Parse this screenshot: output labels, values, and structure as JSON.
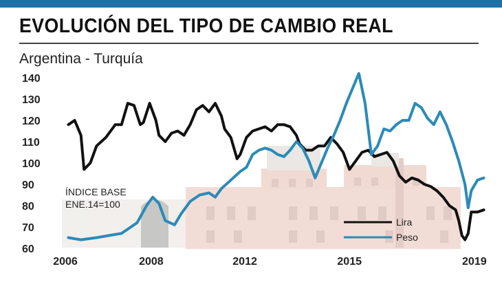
{
  "header": {
    "title": "EVOLUCIÓN DEL TIPO DE CAMBIO REAL",
    "subtitle": "Argentina - Turquía"
  },
  "colors": {
    "lira": "#111111",
    "peso": "#2b8ab8",
    "accent": "#1f6fa8"
  },
  "chart_data": {
    "type": "line",
    "title": "EVOLUCIÓN DEL TIPO DE CAMBIO REAL",
    "subtitle": "Argentina - Turquía",
    "xlabel": "",
    "ylabel": "",
    "ylim": [
      60,
      140
    ],
    "xlim": [
      2006,
      2019.5
    ],
    "y_ticks": [
      140,
      130,
      120,
      110,
      100,
      90,
      80,
      70,
      60
    ],
    "x_ticks": [
      "2006",
      "2008",
      "2012",
      "2015",
      "2019"
    ],
    "x_tick_values": [
      2006,
      2008.75,
      2011.75,
      2015.1,
      2019.1
    ],
    "annotation": [
      "ÍNDICE BASE",
      "ENE.14=100"
    ],
    "grid": false,
    "legend_position": "bottom-right",
    "series": [
      {
        "name": "Lira",
        "color": "#111111",
        "x": [
          2006.1,
          2006.3,
          2006.5,
          2006.6,
          2006.8,
          2007.0,
          2007.3,
          2007.6,
          2007.8,
          2008.0,
          2008.2,
          2008.4,
          2008.5,
          2008.7,
          2008.9,
          2009.0,
          2009.2,
          2009.4,
          2009.6,
          2009.8,
          2010.0,
          2010.2,
          2010.4,
          2010.6,
          2010.8,
          2011.0,
          2011.1,
          2011.3,
          2011.5,
          2011.6,
          2011.8,
          2012.0,
          2012.2,
          2012.4,
          2012.6,
          2012.8,
          2013.0,
          2013.2,
          2013.4,
          2013.5,
          2013.7,
          2013.9,
          2014.1,
          2014.3,
          2014.5,
          2014.7,
          2014.9,
          2015.1,
          2015.3,
          2015.5,
          2015.7,
          2015.9,
          2016.1,
          2016.3,
          2016.5,
          2016.7,
          2016.9,
          2017.1,
          2017.3,
          2017.5,
          2017.7,
          2017.9,
          2018.1,
          2018.3,
          2018.5,
          2018.6,
          2018.7,
          2018.8,
          2018.9,
          2019.0,
          2019.2,
          2019.4
        ],
        "values": [
          118,
          120,
          113,
          97,
          100,
          108,
          112,
          118,
          118,
          128,
          127,
          118,
          119,
          128,
          120,
          113,
          110,
          114,
          115,
          113,
          118,
          125,
          127,
          124,
          128,
          122,
          116,
          112,
          102,
          104,
          112,
          115,
          116,
          117,
          115,
          118,
          118,
          117,
          113,
          109,
          106,
          106,
          108,
          108,
          112,
          109,
          105,
          97,
          101,
          105,
          106,
          103,
          104,
          105,
          101,
          94,
          91,
          93,
          92,
          90,
          89,
          87,
          84,
          80,
          78,
          73,
          66,
          64,
          67,
          77,
          77,
          78
        ]
      },
      {
        "name": "Peso",
        "color": "#2b8ab8",
        "x": [
          2006.1,
          2006.5,
          2007.0,
          2007.4,
          2007.8,
          2008.0,
          2008.3,
          2008.6,
          2008.8,
          2009.0,
          2009.2,
          2009.5,
          2009.7,
          2010.0,
          2010.3,
          2010.6,
          2010.8,
          2011.0,
          2011.3,
          2011.6,
          2011.8,
          2012.0,
          2012.2,
          2012.4,
          2012.6,
          2012.8,
          2013.0,
          2013.2,
          2013.4,
          2013.6,
          2013.8,
          2014.0,
          2014.2,
          2014.4,
          2014.6,
          2014.8,
          2015.0,
          2015.2,
          2015.4,
          2015.6,
          2015.8,
          2016.0,
          2016.2,
          2016.4,
          2016.6,
          2016.8,
          2017.0,
          2017.2,
          2017.4,
          2017.6,
          2017.8,
          2018.0,
          2018.2,
          2018.4,
          2018.6,
          2018.8,
          2018.9,
          2019.0,
          2019.2,
          2019.4
        ],
        "values": [
          65,
          64,
          65,
          66,
          67,
          69,
          72,
          80,
          84,
          81,
          73,
          71,
          76,
          82,
          85,
          86,
          84,
          88,
          92,
          96,
          98,
          104,
          106,
          107,
          106,
          104,
          103,
          106,
          110,
          107,
          101,
          93,
          100,
          107,
          113,
          120,
          128,
          135,
          142,
          128,
          104,
          108,
          116,
          115,
          118,
          120,
          120,
          128,
          126,
          121,
          118,
          124,
          118,
          110,
          101,
          90,
          79,
          87,
          92,
          93
        ]
      }
    ]
  }
}
